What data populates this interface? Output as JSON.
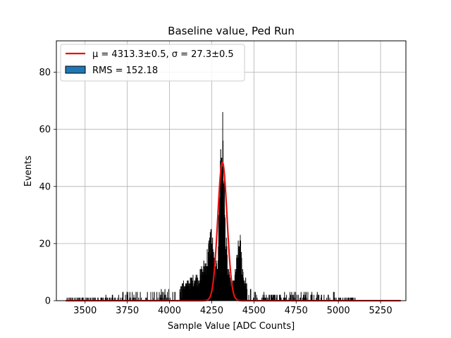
{
  "chart_data": {
    "type": "histogram",
    "title": "Baseline value, Ped Run",
    "xlabel": "Sample Value [ADC Counts]",
    "ylabel": "Events",
    "xlim": [
      3330,
      5400
    ],
    "ylim": [
      0,
      91
    ],
    "xticks": [
      3500,
      3750,
      4000,
      4250,
      4500,
      4750,
      5000,
      5250
    ],
    "yticks": [
      0,
      20,
      40,
      60,
      80
    ],
    "grid": true,
    "legend_position": "top-left",
    "legend": {
      "fit_label": "μ = 4313.3±0.5, σ = 27.3±0.5",
      "hist_label": "RMS = 152.18"
    },
    "fit": {
      "type": "gaussian",
      "mu": 4313.3,
      "sigma": 27.3,
      "amplitude": 48.5,
      "x_range": [
        3385,
        5370
      ],
      "color": "#e8110f"
    },
    "histogram_envelope": [
      [
        3390,
        0
      ],
      [
        3400,
        1
      ],
      [
        3500,
        1
      ],
      [
        3600,
        1
      ],
      [
        3700,
        2
      ],
      [
        3800,
        3
      ],
      [
        3900,
        3
      ],
      [
        3950,
        4
      ],
      [
        4000,
        4
      ],
      [
        4050,
        5
      ],
      [
        4100,
        7
      ],
      [
        4150,
        9
      ],
      [
        4175,
        10
      ],
      [
        4200,
        13
      ],
      [
        4220,
        17
      ],
      [
        4235,
        22
      ],
      [
        4245,
        28
      ],
      [
        4255,
        22
      ],
      [
        4265,
        15
      ],
      [
        4275,
        12
      ],
      [
        4285,
        18
      ],
      [
        4292,
        32
      ],
      [
        4298,
        50
      ],
      [
        4303,
        62
      ],
      [
        4308,
        65
      ],
      [
        4312,
        70
      ],
      [
        4316,
        63
      ],
      [
        4320,
        55
      ],
      [
        4325,
        42
      ],
      [
        4330,
        30
      ],
      [
        4338,
        20
      ],
      [
        4345,
        12
      ],
      [
        4355,
        9
      ],
      [
        4365,
        7
      ],
      [
        4378,
        7
      ],
      [
        4388,
        10
      ],
      [
        4395,
        14
      ],
      [
        4402,
        18
      ],
      [
        4410,
        22
      ],
      [
        4416,
        25
      ],
      [
        4422,
        20
      ],
      [
        4430,
        14
      ],
      [
        4440,
        9
      ],
      [
        4455,
        7
      ],
      [
        4470,
        4
      ],
      [
        4500,
        3
      ],
      [
        4600,
        2
      ],
      [
        4700,
        3
      ],
      [
        4800,
        3
      ],
      [
        4900,
        2
      ],
      [
        4960,
        3
      ],
      [
        5000,
        1
      ],
      [
        5070,
        1
      ],
      [
        5100,
        0
      ]
    ],
    "colors": {
      "bars": "#000000",
      "legend_patch": "#1f77b4",
      "grid": "#b0b0b0"
    }
  }
}
